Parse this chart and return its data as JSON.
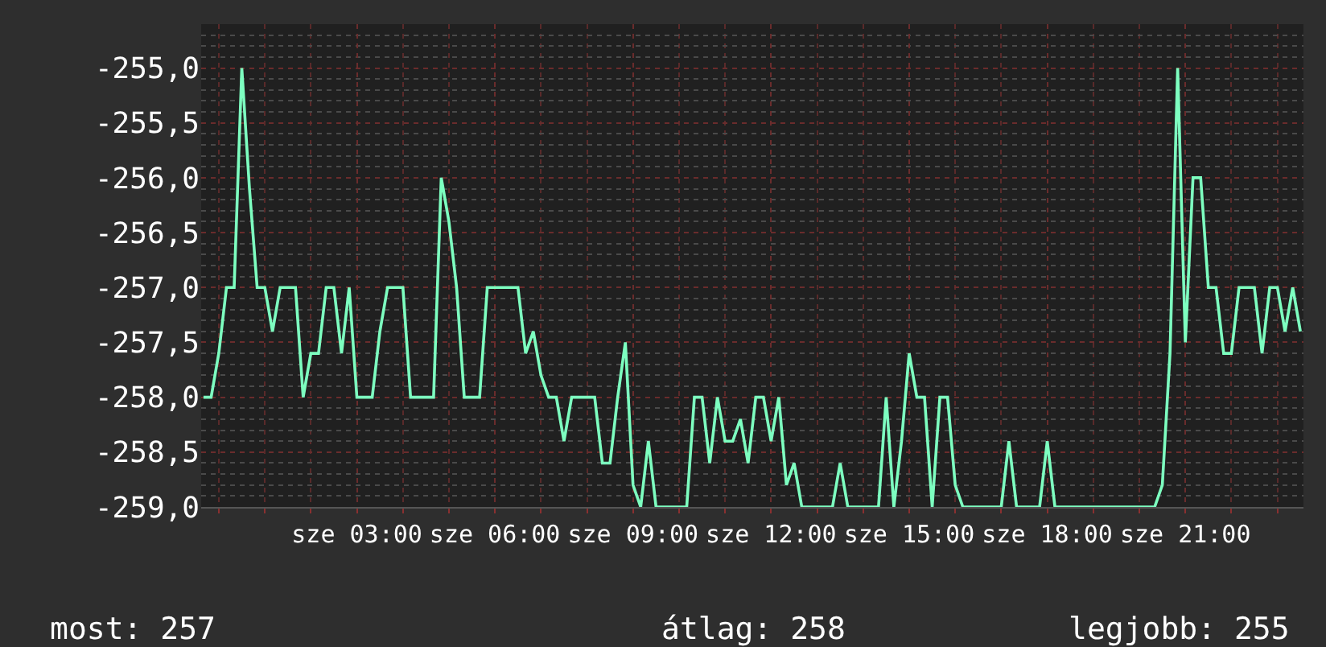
{
  "chart_data": {
    "type": "line",
    "grid": true,
    "categories": [
      null,
      null,
      null,
      null,
      null,
      null,
      null,
      null,
      null,
      null,
      null,
      null,
      null,
      null,
      null,
      null,
      null,
      null,
      null,
      null,
      "sze 03:00",
      null,
      null,
      null,
      null,
      null,
      null,
      null,
      null,
      null,
      null,
      null,
      null,
      null,
      null,
      null,
      null,
      null,
      "sze 06:00",
      null,
      null,
      null,
      null,
      null,
      null,
      null,
      null,
      null,
      null,
      null,
      null,
      null,
      null,
      null,
      null,
      null,
      "sze 09:00",
      null,
      null,
      null,
      null,
      null,
      null,
      null,
      null,
      null,
      null,
      null,
      null,
      null,
      null,
      null,
      null,
      null,
      "sze 12:00",
      null,
      null,
      null,
      null,
      null,
      null,
      null,
      null,
      null,
      null,
      null,
      null,
      null,
      null,
      null,
      null,
      null,
      "sze 15:00",
      null,
      null,
      null,
      null,
      null,
      null,
      null,
      null,
      null,
      null,
      null,
      null,
      null,
      null,
      null,
      null,
      null,
      "sze 18:00",
      null,
      null,
      null,
      null,
      null,
      null,
      null,
      null,
      null,
      null,
      null,
      null,
      null,
      null,
      null,
      null,
      null,
      "sze 21:00",
      null,
      null,
      null,
      null,
      null,
      null,
      null,
      null,
      null,
      null,
      null,
      null,
      null,
      null,
      null
    ],
    "series": [
      {
        "color": "#7dffc0",
        "values": [
          -258.0,
          -258.0,
          -257.6,
          -257.0,
          -257.0,
          -255.0,
          -256.1,
          -257.0,
          -257.0,
          -257.4,
          -257.0,
          -257.0,
          -257.0,
          -258.0,
          -257.6,
          -257.6,
          -257.0,
          -257.0,
          -257.6,
          -257.0,
          -258.0,
          -258.0,
          -258.0,
          -257.4,
          -257.0,
          -257.0,
          -257.0,
          -258.0,
          -258.0,
          -258.0,
          -258.0,
          -256.0,
          -256.4,
          -257.0,
          -258.0,
          -258.0,
          -258.0,
          -257.0,
          -257.0,
          -257.0,
          -257.0,
          -257.0,
          -257.6,
          -257.4,
          -257.8,
          -258.0,
          -258.0,
          -258.4,
          -258.0,
          -258.0,
          -258.0,
          -258.0,
          -258.6,
          -258.6,
          -258.0,
          -257.5,
          -258.8,
          -259.0,
          -258.4,
          -259.0,
          -259.0,
          -259.0,
          -259.0,
          -259.0,
          -258.0,
          -258.0,
          -258.6,
          -258.0,
          -258.4,
          -258.4,
          -258.2,
          -258.6,
          -258.0,
          -258.0,
          -258.4,
          -258.0,
          -258.8,
          -258.6,
          -259.0,
          -259.0,
          -259.0,
          -259.0,
          -259.0,
          -258.6,
          -259.0,
          -259.0,
          -259.0,
          -259.0,
          -259.0,
          -258.0,
          -259.0,
          -258.4,
          -257.6,
          -258.0,
          -258.0,
          -259.0,
          -258.0,
          -258.0,
          -258.8,
          -259.0,
          -259.0,
          -259.0,
          -259.0,
          -259.0,
          -259.0,
          -258.4,
          -259.0,
          -259.0,
          -259.0,
          -259.0,
          -258.4,
          -259.0,
          -259.0,
          -259.0,
          -259.0,
          -259.0,
          -259.0,
          -259.0,
          -259.0,
          -259.0,
          -259.0,
          -259.0,
          -259.0,
          -259.0,
          -259.0,
          -258.8,
          -257.6,
          -255.0,
          -257.5,
          -256.0,
          -256.0,
          -257.0,
          -257.0,
          -257.6,
          -257.6,
          -257.0,
          -257.0,
          -257.0,
          -257.6,
          -257.0,
          -257.0,
          -257.4,
          -257.0,
          -257.4
        ]
      }
    ],
    "ylim": [
      -259,
      -254.6
    ],
    "yticks": [
      {
        "value": -259,
        "label": "-259,0"
      },
      {
        "value": -258.5,
        "label": "-258,5"
      },
      {
        "value": -258,
        "label": "-258,0"
      },
      {
        "value": -257.5,
        "label": "-257,5"
      },
      {
        "value": -257,
        "label": "-257,0"
      },
      {
        "value": -256.5,
        "label": "-256,5"
      },
      {
        "value": -256,
        "label": "-256,0"
      },
      {
        "value": -255.5,
        "label": "-255,5"
      },
      {
        "value": -255,
        "label": "-255,0"
      }
    ],
    "annotations": [
      "most: 257",
      "átlag: 258",
      "legjobb: 255"
    ]
  }
}
